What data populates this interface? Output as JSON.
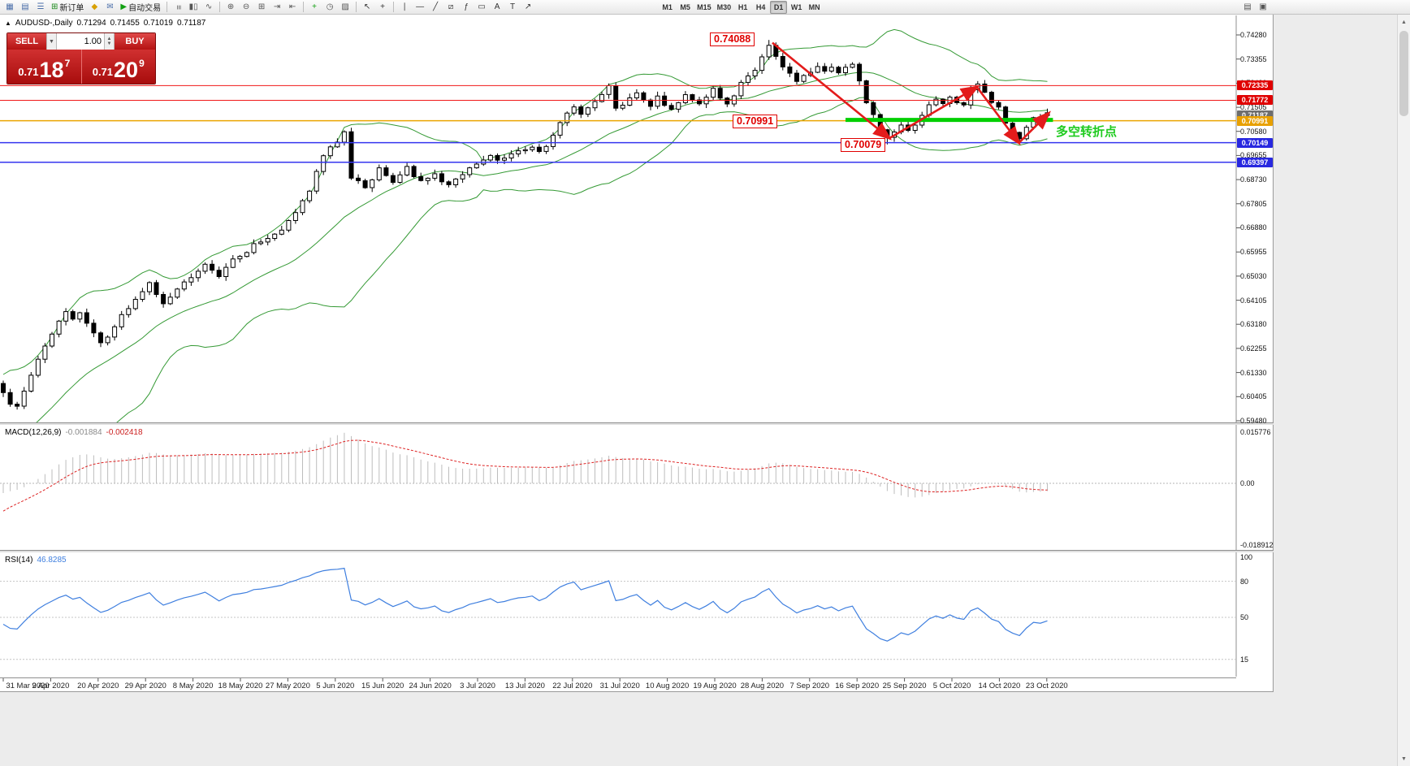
{
  "colors": {
    "accent_red": "#e00000",
    "buy_sell_red": "#b41212",
    "bollinger": "#359a35",
    "macd_hist": "#bdbdbd",
    "macd_signal": "#dd2222",
    "rsi_line": "#3f7fdf",
    "support_green": "#00cf00",
    "arrow_red": "#e31b1b",
    "note_green": "#1ecb1e"
  },
  "toolbar": {
    "items": [
      {
        "name": "new-chart",
        "glyph": "▦",
        "color": "#4a6ea9"
      },
      {
        "name": "profiles",
        "glyph": "▤",
        "color": "#4a6ea9"
      },
      {
        "name": "market-watch",
        "glyph": "☰",
        "color": "#4a6ea9"
      },
      {
        "name": "new-order",
        "glyph": "⊞",
        "color": "#1a8a1a",
        "label": "新订单"
      },
      {
        "name": "metaeditor",
        "glyph": "◆",
        "color": "#d8a000"
      },
      {
        "name": "alerts",
        "glyph": "✉",
        "color": "#4a6ea9"
      },
      {
        "name": "autotrading",
        "glyph": "▶",
        "color": "#12a012",
        "label": "自动交易"
      },
      {
        "sep": true
      },
      {
        "name": "chart-bars",
        "glyph": "≡",
        "color": "#555",
        "rot": true
      },
      {
        "name": "chart-candles",
        "glyph": "▮▯",
        "color": "#555"
      },
      {
        "name": "chart-line",
        "glyph": "∿",
        "color": "#555"
      },
      {
        "sep": true
      },
      {
        "name": "zoom-in",
        "glyph": "⊕",
        "color": "#555"
      },
      {
        "name": "zoom-out",
        "glyph": "⊖",
        "color": "#555"
      },
      {
        "name": "tile-windows",
        "glyph": "⊞",
        "color": "#555"
      },
      {
        "name": "auto-scroll",
        "glyph": "⇥",
        "color": "#555"
      },
      {
        "name": "chart-shift",
        "glyph": "⇤",
        "color": "#555"
      },
      {
        "sep": true
      },
      {
        "name": "indicators",
        "glyph": "+",
        "color": "#12a012"
      },
      {
        "name": "periods",
        "glyph": "◷",
        "color": "#555"
      },
      {
        "name": "templates",
        "glyph": "▨",
        "color": "#555"
      },
      {
        "sep": true
      },
      {
        "name": "cursor",
        "glyph": "↖",
        "color": "#333"
      },
      {
        "name": "crosshair",
        "glyph": "+",
        "color": "#333"
      },
      {
        "sep": true
      },
      {
        "name": "vertical-line",
        "glyph": "∣",
        "color": "#333"
      },
      {
        "name": "horizontal-line",
        "glyph": "―",
        "color": "#333"
      },
      {
        "name": "trendline",
        "glyph": "╱",
        "color": "#333"
      },
      {
        "name": "channel",
        "glyph": "⧄",
        "color": "#333"
      },
      {
        "name": "fibonacci",
        "glyph": "ƒ",
        "color": "#333"
      },
      {
        "name": "shapes",
        "glyph": "▭",
        "color": "#333"
      },
      {
        "name": "text",
        "glyph": "A",
        "color": "#333"
      },
      {
        "name": "text-label",
        "glyph": "T",
        "color": "#333"
      },
      {
        "name": "arrow-tools",
        "glyph": "↗",
        "color": "#333"
      },
      {
        "spacer": 150
      }
    ],
    "timeframes": [
      "M1",
      "M5",
      "M15",
      "M30",
      "H1",
      "H4",
      "D1",
      "W1",
      "MN"
    ],
    "active_timeframe": "D1",
    "right_items": [
      {
        "name": "print",
        "glyph": "▤",
        "color": "#555"
      },
      {
        "name": "full-screen",
        "glyph": "▣",
        "color": "#555"
      }
    ]
  },
  "chart_header": {
    "symbol": "AUDUSD-,Daily",
    "open": "0.71294",
    "high": "0.71455",
    "low": "0.71019",
    "close": "0.71187"
  },
  "trade_panel": {
    "sell_label": "SELL",
    "buy_label": "BUY",
    "lot_value": "1.00",
    "sell_price": {
      "big": "0.71",
      "mid": "18",
      "sup": "7"
    },
    "buy_price": {
      "big": "0.71",
      "mid": "20",
      "sup": "9"
    }
  },
  "annotations": {
    "peak_price": "0.74088",
    "pivot_price": "0.70991",
    "low_price": "0.70079",
    "note_cn": "多空转折点",
    "support_line": {
      "from_index": 121,
      "to_index": 150.8,
      "price": 0.70991,
      "color": "#00cf00",
      "width": 5
    },
    "trend_arrows": {
      "color": "#e31b1b",
      "points": [
        {
          "i": 110.5,
          "p": 0.7398
        },
        {
          "i": 127.3,
          "p": 0.7032
        },
        {
          "i": 139.9,
          "p": 0.7228
        },
        {
          "i": 145.9,
          "p": 0.7014
        },
        {
          "i": 150.2,
          "p": 0.7128
        }
      ]
    }
  },
  "hlines": [
    {
      "price": 0.72335,
      "color": "#f01818",
      "width": 1
    },
    {
      "price": 0.71772,
      "color": "#f01818",
      "width": 1
    },
    {
      "price": 0.70991,
      "color": "#eba400",
      "width": 1.5
    },
    {
      "price": 0.70149,
      "color": "#3535ef",
      "width": 1.5
    },
    {
      "price": 0.69397,
      "color": "#3535ef",
      "width": 1.5
    }
  ],
  "price_axis": {
    "grid_labels": [
      "0.74280",
      "0.73355",
      "0.72430",
      "0.71505",
      "0.70580",
      "0.69655",
      "0.68730",
      "0.67805",
      "0.66880",
      "0.65955",
      "0.65030",
      "0.64105",
      "0.63180",
      "0.62255",
      "0.61330",
      "0.60405",
      "0.59480"
    ],
    "tags": [
      {
        "label": "0.72335",
        "price": 0.72335,
        "bg": "#e00000",
        "fg": "#ffffff"
      },
      {
        "label": "0.71772",
        "price": 0.71772,
        "bg": "#e00000",
        "fg": "#ffffff"
      },
      {
        "label": "0.71187",
        "price": 0.71187,
        "bg": "#6e6e6e",
        "fg": "#ffffff"
      },
      {
        "label": "0.70991",
        "price": 0.70991,
        "bg": "#e8a000",
        "fg": "#ffffff"
      },
      {
        "label": "0.70149",
        "price": 0.70149,
        "bg": "#2828e0",
        "fg": "#ffffff"
      },
      {
        "label": "0.69397",
        "price": 0.69397,
        "bg": "#2828e0",
        "fg": "#ffffff"
      }
    ]
  },
  "macd_panel": {
    "name": "MACD(12,26,9)",
    "value_main": "-0.001884",
    "value_signal": "-0.002418",
    "axis_labels": [
      "0.015776",
      "0.00",
      "-0.018912"
    ]
  },
  "rsi_panel": {
    "name": "RSI(14)",
    "value": "46.8285",
    "axis_labels": [
      "100",
      "80",
      "50",
      "15"
    ],
    "levels": [
      80,
      50,
      15
    ]
  },
  "date_axis": [
    "31 Mar 2020",
    "9 Apr 2020",
    "20 Apr 2020",
    "29 Apr 2020",
    "8 May 2020",
    "18 May 2020",
    "27 May 2020",
    "5 Jun 2020",
    "15 Jun 2020",
    "24 Jun 2020",
    "3 Jul 2020",
    "13 Jul 2020",
    "22 Jul 2020",
    "31 Jul 2020",
    "10 Aug 2020",
    "19 Aug 2020",
    "28 Aug 2020",
    "7 Sep 2020",
    "16 Sep 2020",
    "25 Sep 2020",
    "5 Oct 2020",
    "14 Oct 2020",
    "23 Oct 2020"
  ],
  "chart_data": {
    "type": "candlestick",
    "symbol": "AUDUSD",
    "timeframe": "Daily",
    "visible_range": {
      "start": "31 Mar 2020",
      "end": "23 Oct 2020"
    },
    "price_max": 0.7428,
    "price_min": 0.5948,
    "price_step": 0.00925,
    "candle_count": 151,
    "last_candle": {
      "open": 0.71294,
      "high": 0.71455,
      "low": 0.71019,
      "close": 0.71187
    },
    "peak": {
      "index": 110,
      "high": 0.74088
    },
    "swing_low": {
      "index": 127,
      "low": 0.70079
    },
    "october_low": {
      "index": 146,
      "low": 0.7021
    },
    "indicators": [
      "Bollinger Bands(20,2)",
      "MACD(12,26,9)",
      "RSI(14)"
    ],
    "anchors": [
      [
        0,
        0.606
      ],
      [
        1,
        0.6015
      ],
      [
        2,
        0.6
      ],
      [
        3,
        0.606
      ],
      [
        5,
        0.6185
      ],
      [
        6,
        0.6235
      ],
      [
        8,
        0.633
      ],
      [
        9,
        0.6365
      ],
      [
        10,
        0.634
      ],
      [
        11,
        0.6365
      ],
      [
        12,
        0.632
      ],
      [
        13,
        0.6285
      ],
      [
        14,
        0.625
      ],
      [
        15,
        0.627
      ],
      [
        16,
        0.631
      ],
      [
        17,
        0.6355
      ],
      [
        18,
        0.638
      ],
      [
        19,
        0.641
      ],
      [
        20,
        0.6445
      ],
      [
        21,
        0.6475
      ],
      [
        22,
        0.6435
      ],
      [
        23,
        0.64
      ],
      [
        24,
        0.6425
      ],
      [
        25,
        0.6455
      ],
      [
        26,
        0.648
      ],
      [
        27,
        0.6495
      ],
      [
        28,
        0.6525
      ],
      [
        29,
        0.6545
      ],
      [
        30,
        0.6525
      ],
      [
        31,
        0.65
      ],
      [
        32,
        0.6535
      ],
      [
        33,
        0.6565
      ],
      [
        35,
        0.659
      ],
      [
        36,
        0.6625
      ],
      [
        38,
        0.665
      ],
      [
        40,
        0.668
      ],
      [
        41,
        0.672
      ],
      [
        42,
        0.675
      ],
      [
        44,
        0.683
      ],
      [
        45,
        0.6905
      ],
      [
        46,
        0.6965
      ],
      [
        47,
        0.6995
      ],
      [
        48,
        0.7015
      ],
      [
        49,
        0.7055
      ],
      [
        50,
        0.688
      ],
      [
        51,
        0.687
      ],
      [
        52,
        0.6845
      ],
      [
        53,
        0.6875
      ],
      [
        54,
        0.6915
      ],
      [
        55,
        0.689
      ],
      [
        56,
        0.6865
      ],
      [
        57,
        0.689
      ],
      [
        58,
        0.6925
      ],
      [
        59,
        0.6888
      ],
      [
        60,
        0.6868
      ],
      [
        61,
        0.6875
      ],
      [
        62,
        0.6895
      ],
      [
        63,
        0.6862
      ],
      [
        64,
        0.6852
      ],
      [
        65,
        0.6872
      ],
      [
        66,
        0.6895
      ],
      [
        67,
        0.6918
      ],
      [
        69,
        0.6945
      ],
      [
        70,
        0.6962
      ],
      [
        71,
        0.6945
      ],
      [
        72,
        0.6955
      ],
      [
        73,
        0.6968
      ],
      [
        74,
        0.698
      ],
      [
        76,
        0.6995
      ],
      [
        77,
        0.6985
      ],
      [
        78,
        0.7
      ],
      [
        80,
        0.709
      ],
      [
        81,
        0.7128
      ],
      [
        82,
        0.715
      ],
      [
        83,
        0.712
      ],
      [
        84,
        0.7148
      ],
      [
        85,
        0.717
      ],
      [
        86,
        0.72
      ],
      [
        87,
        0.7232
      ],
      [
        88,
        0.7145
      ],
      [
        89,
        0.7158
      ],
      [
        90,
        0.7188
      ],
      [
        91,
        0.7208
      ],
      [
        92,
        0.7182
      ],
      [
        93,
        0.7158
      ],
      [
        94,
        0.719
      ],
      [
        95,
        0.7155
      ],
      [
        96,
        0.7142
      ],
      [
        97,
        0.7172
      ],
      [
        98,
        0.7198
      ],
      [
        99,
        0.7178
      ],
      [
        100,
        0.7162
      ],
      [
        101,
        0.7185
      ],
      [
        102,
        0.7225
      ],
      [
        103,
        0.7182
      ],
      [
        104,
        0.7162
      ],
      [
        105,
        0.7192
      ],
      [
        106,
        0.7245
      ],
      [
        107,
        0.7268
      ],
      [
        108,
        0.7295
      ],
      [
        109,
        0.734
      ],
      [
        110,
        0.7388
      ],
      [
        111,
        0.7345
      ],
      [
        112,
        0.7308
      ],
      [
        113,
        0.7282
      ],
      [
        114,
        0.7252
      ],
      [
        115,
        0.727
      ],
      [
        116,
        0.7282
      ],
      [
        117,
        0.7305
      ],
      [
        118,
        0.7288
      ],
      [
        119,
        0.73
      ],
      [
        120,
        0.7282
      ],
      [
        121,
        0.7302
      ],
      [
        122,
        0.7312
      ],
      [
        123,
        0.7252
      ],
      [
        124,
        0.717
      ],
      [
        125,
        0.7122
      ],
      [
        126,
        0.7062
      ],
      [
        127,
        0.7032
      ],
      [
        128,
        0.7058
      ],
      [
        129,
        0.7082
      ],
      [
        130,
        0.7062
      ],
      [
        131,
        0.7082
      ],
      [
        132,
        0.7122
      ],
      [
        133,
        0.7162
      ],
      [
        134,
        0.7182
      ],
      [
        135,
        0.7165
      ],
      [
        136,
        0.7192
      ],
      [
        137,
        0.7172
      ],
      [
        138,
        0.7162
      ],
      [
        139,
        0.7222
      ],
      [
        140,
        0.7243
      ],
      [
        141,
        0.7205
      ],
      [
        142,
        0.7165
      ],
      [
        143,
        0.7155
      ],
      [
        144,
        0.7092
      ],
      [
        145,
        0.7055
      ],
      [
        146,
        0.703
      ],
      [
        147,
        0.7072
      ],
      [
        148,
        0.7112
      ],
      [
        149,
        0.7105
      ],
      [
        150,
        0.71187
      ]
    ]
  }
}
